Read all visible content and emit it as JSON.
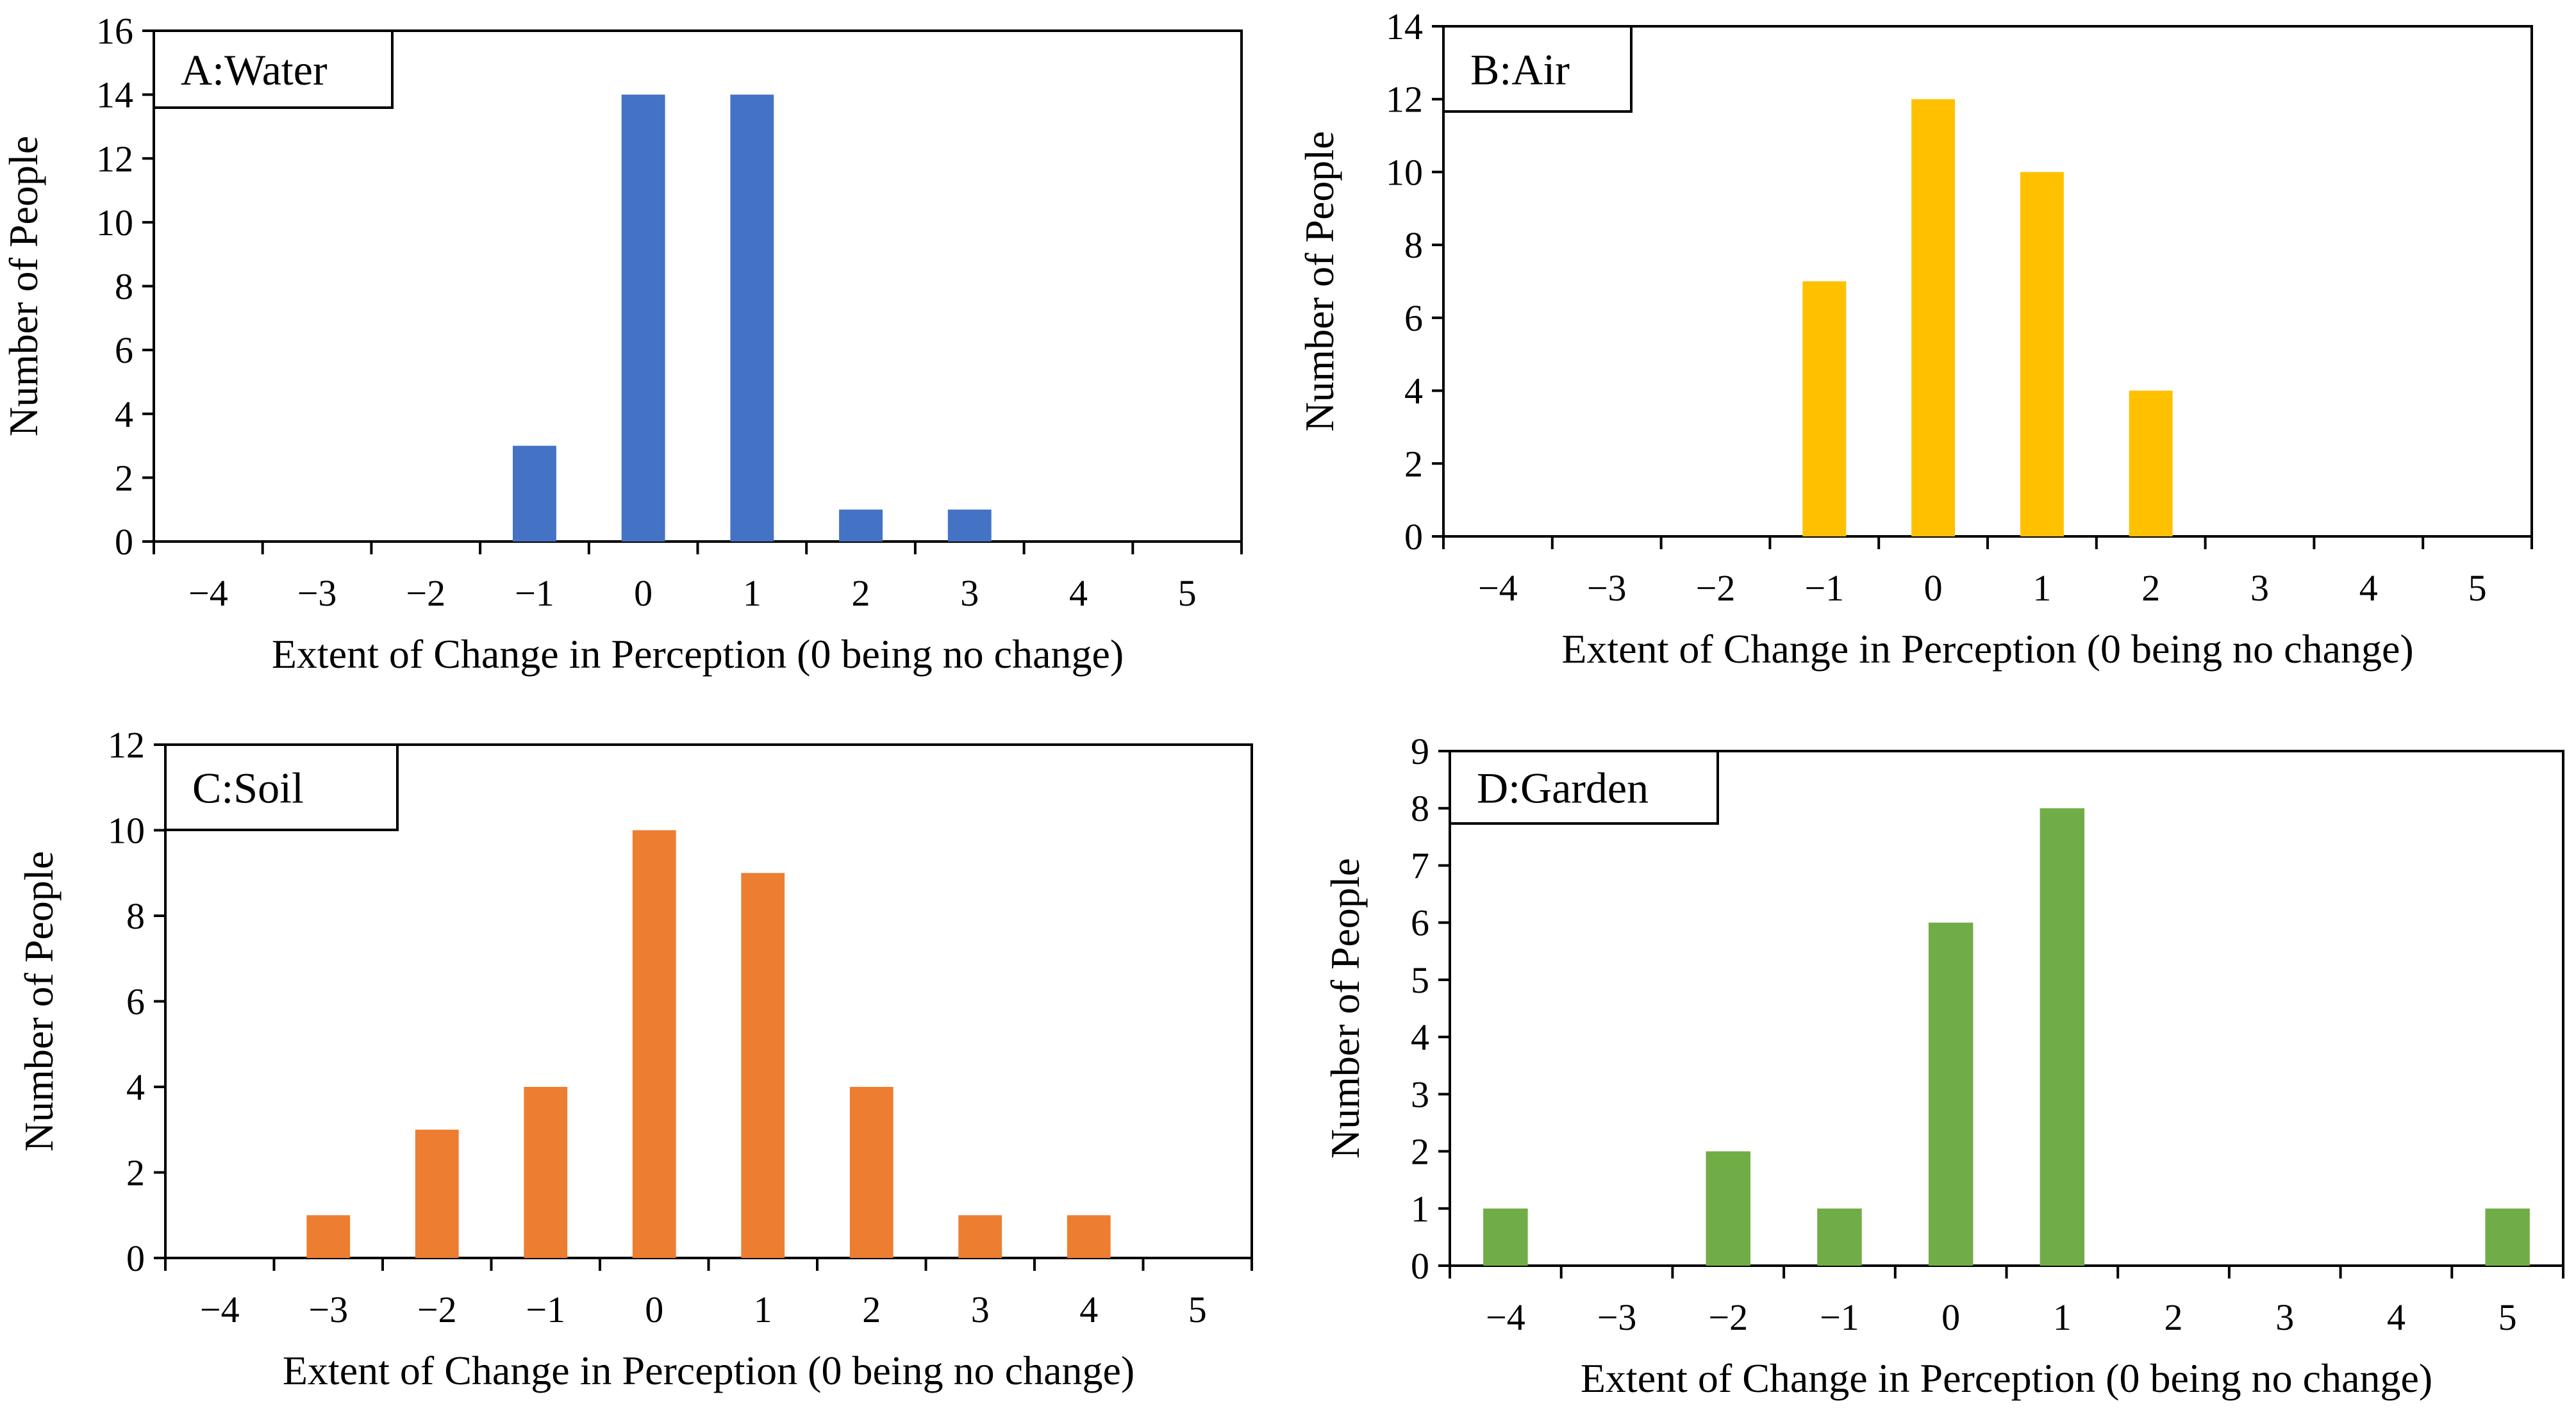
{
  "chart_data": [
    {
      "type": "bar",
      "panel_label": "A:Water",
      "categories": [
        "−4",
        "−3",
        "−2",
        "−1",
        "0",
        "1",
        "2",
        "3",
        "4",
        "5"
      ],
      "values": [
        0,
        0,
        0,
        3,
        14,
        14,
        1,
        1,
        0,
        0
      ],
      "color": "#4472C4",
      "xlabel": "Extent of Change in Perception (0 being no change)",
      "ylabel": "Number of People",
      "ylim": [
        0,
        16
      ],
      "yticks": [
        "0",
        "2",
        "4",
        "6",
        "8",
        "10",
        "12",
        "14",
        "16"
      ],
      "grid": false
    },
    {
      "type": "bar",
      "panel_label": "B:Air",
      "categories": [
        "−4",
        "−3",
        "−2",
        "−1",
        "0",
        "1",
        "2",
        "3",
        "4",
        "5"
      ],
      "values": [
        0,
        0,
        0,
        7,
        12,
        10,
        4,
        0,
        0,
        0
      ],
      "color": "#FFC000",
      "xlabel": "Extent of Change in Perception (0 being no change)",
      "ylabel": "Number of People",
      "ylim": [
        0,
        14
      ],
      "yticks": [
        "0",
        "2",
        "4",
        "6",
        "8",
        "10",
        "12",
        "14"
      ],
      "grid": false
    },
    {
      "type": "bar",
      "panel_label": "C:Soil",
      "categories": [
        "−4",
        "−3",
        "−2",
        "−1",
        "0",
        "1",
        "2",
        "3",
        "4",
        "5"
      ],
      "values": [
        0,
        1,
        3,
        4,
        10,
        9,
        4,
        1,
        1,
        0
      ],
      "color": "#ED7D31",
      "xlabel": "Extent of Change in Perception (0 being no change)",
      "ylabel": "Number of People",
      "ylim": [
        0,
        12
      ],
      "yticks": [
        "0",
        "2",
        "4",
        "6",
        "8",
        "10",
        "12"
      ],
      "grid": false
    },
    {
      "type": "bar",
      "panel_label": "D:Garden",
      "categories": [
        "−4",
        "−3",
        "−2",
        "−1",
        "0",
        "1",
        "2",
        "3",
        "4",
        "5"
      ],
      "values": [
        1,
        0,
        2,
        1,
        6,
        8,
        0,
        0,
        0,
        1
      ],
      "color": "#70AD47",
      "xlabel": "Extent of Change in Perception (0 being no change)",
      "ylabel": "Number of People",
      "ylim": [
        0,
        9
      ],
      "yticks": [
        "0",
        "1",
        "2",
        "3",
        "4",
        "5",
        "6",
        "7",
        "8",
        "9"
      ],
      "grid": false
    }
  ]
}
